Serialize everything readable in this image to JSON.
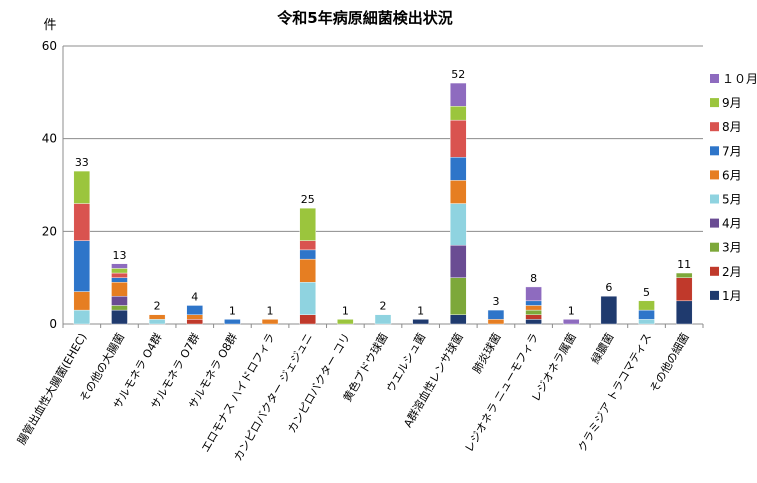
{
  "chart_data": {
    "type": "bar",
    "stacked": true,
    "title": "令和5年病原細菌検出状況",
    "ylabel": "件",
    "ylim": [
      0,
      60
    ],
    "yticks": [
      0,
      20,
      40,
      60
    ],
    "grid": true,
    "legend_position": "right",
    "categories": [
      "腸管出血性大腸菌(EHEC)",
      "その他の大腸菌",
      "サルモネラ O4群",
      "サルモネラ O7群",
      "サルモネラ O8群",
      "エロモナス ハイドロフィラ",
      "カンピロバクター ジェジュニ",
      "カンピロバクター コリ",
      "黄色ブドウ球菌",
      "ウエルシュ菌",
      "A群溶血性レンサ球菌",
      "肺炎球菌",
      "レジオネラ ニューモフィラ",
      "レジオネラ属菌",
      "緑膿菌",
      "クラミジア トラコマティス",
      "その他の細菌"
    ],
    "totals": [
      "33",
      "13",
      "2",
      "4",
      "1",
      "1",
      "25",
      "1",
      "2",
      "1",
      "52",
      "3",
      "8",
      "1",
      "6",
      "5",
      "11"
    ],
    "series": [
      {
        "name": "1月",
        "color": "#1F3A6E",
        "values": [
          0,
          3,
          0,
          0,
          0,
          0,
          0,
          0,
          0,
          1,
          2,
          0,
          1,
          0,
          6,
          0,
          5
        ]
      },
      {
        "name": "2月",
        "color": "#C0392B",
        "values": [
          0,
          0,
          0,
          1,
          0,
          0,
          2,
          0,
          0,
          0,
          0,
          0,
          1,
          0,
          0,
          0,
          5
        ]
      },
      {
        "name": "3月",
        "color": "#7DA83A",
        "values": [
          0,
          1,
          0,
          0,
          0,
          0,
          0,
          0,
          0,
          0,
          8,
          0,
          1,
          0,
          0,
          0,
          1
        ]
      },
      {
        "name": "4月",
        "color": "#6A4C93",
        "values": [
          0,
          2,
          0,
          0,
          0,
          0,
          0,
          0,
          0,
          0,
          7,
          0,
          0,
          0,
          0,
          0,
          0
        ]
      },
      {
        "name": "5月",
        "color": "#8FD3E0",
        "values": [
          3,
          0,
          1,
          0,
          0,
          0,
          7,
          0,
          2,
          0,
          9,
          0,
          0,
          0,
          0,
          1,
          0
        ]
      },
      {
        "name": "6月",
        "color": "#E67E22",
        "values": [
          4,
          3,
          1,
          1,
          0,
          1,
          5,
          0,
          0,
          0,
          5,
          1,
          1,
          0,
          0,
          0,
          0
        ]
      },
      {
        "name": "7月",
        "color": "#2E75C9",
        "values": [
          11,
          1,
          0,
          2,
          1,
          0,
          2,
          0,
          0,
          0,
          5,
          2,
          1,
          0,
          0,
          2,
          0
        ]
      },
      {
        "name": "8月",
        "color": "#D9534F",
        "values": [
          8,
          1,
          0,
          0,
          0,
          0,
          2,
          0,
          0,
          0,
          8,
          0,
          0,
          0,
          0,
          0,
          0
        ]
      },
      {
        "name": "9月",
        "color": "#9BC53D",
        "values": [
          7,
          1,
          0,
          0,
          0,
          0,
          7,
          1,
          0,
          0,
          3,
          0,
          0,
          0,
          0,
          2,
          0
        ]
      },
      {
        "name": "１０月",
        "color": "#8E6BBF",
        "values": [
          0,
          1,
          0,
          0,
          0,
          0,
          0,
          0,
          0,
          0,
          5,
          0,
          3,
          1,
          0,
          0,
          0
        ]
      }
    ]
  }
}
